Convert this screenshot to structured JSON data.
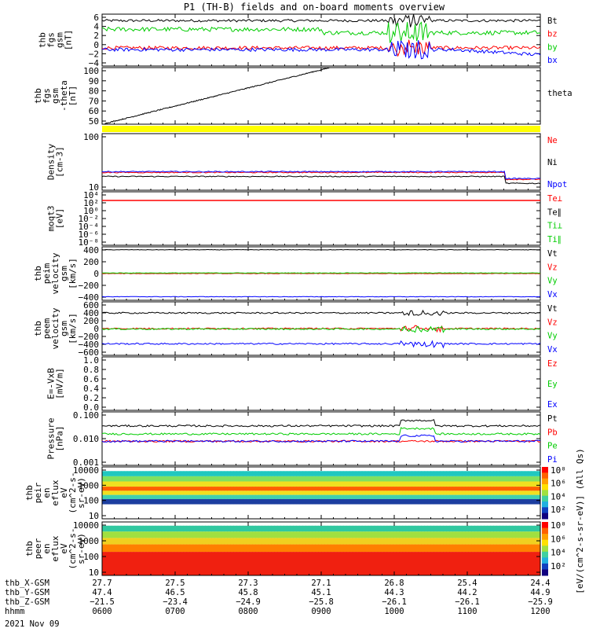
{
  "page": {
    "title": "P1 (TH-B) fields and on-board moments overview",
    "date": "2021 Nov 09"
  },
  "chart_data": [
    {
      "type": "line",
      "panel": "fgs_gsm",
      "ylabel": [
        "thb",
        "fgs",
        "gsm",
        "[nT]"
      ],
      "ylim": [
        -6,
        6
      ],
      "yticks": [
        "6",
        "4",
        "2",
        "0",
        "−2",
        "−4"
      ],
      "series": [
        {
          "name": "Bt",
          "color": "#000000",
          "level": 4.5,
          "noise": 0.3
        },
        {
          "name": "bz",
          "color": "#ff0000",
          "level": -1.8,
          "noise": 0.4
        },
        {
          "name": "by",
          "color": "#00cc00",
          "level": 2.5,
          "noise": 0.5
        },
        {
          "name": "bx",
          "color": "#0000ff",
          "level": -2.2,
          "noise": 0.4
        }
      ]
    },
    {
      "type": "line",
      "panel": "fgs_gsm_theta",
      "ylabel": [
        "thb",
        "fgs",
        "gsm",
        "-theta",
        "[nT]"
      ],
      "ylim": [
        40,
        100
      ],
      "yticks": [
        "100",
        "90",
        "80",
        "70",
        "60",
        "50"
      ],
      "series": [
        {
          "name": "theta",
          "color": "#000000",
          "x": [
            0,
            0.52
          ],
          "y": [
            40,
            100
          ]
        }
      ]
    },
    {
      "type": "bar",
      "panel": "flag",
      "ylabel": [],
      "color": "#ffff00"
    },
    {
      "type": "line",
      "panel": "density",
      "ylabel": [
        "Density",
        "[cm-3]"
      ],
      "scale": "log",
      "ylim": [
        1,
        300
      ],
      "yticks": [
        "100",
        "10"
      ],
      "series": [
        {
          "name": "Ne",
          "color": "#ff0000",
          "level": 6
        },
        {
          "name": "Ni",
          "color": "#000000",
          "level": 4
        },
        {
          "name": "Npot",
          "color": "#0000ff",
          "level": 6.5
        }
      ]
    },
    {
      "type": "line",
      "panel": "moqt3",
      "ylabel": [
        "moqt3",
        "[eV]"
      ],
      "scale": "log",
      "yticks": [
        "10⁴",
        "10²",
        "10⁰",
        "10⁻²",
        "10⁻⁴",
        "10⁻⁶",
        "10⁻⁸"
      ],
      "series": [
        {
          "name": "Te⊥",
          "color": "#ff0000"
        },
        {
          "name": "Te∥",
          "color": "#000000"
        },
        {
          "name": "Ti⊥",
          "color": "#00cc00"
        },
        {
          "name": "Ti∥",
          "color": "#00cc00"
        }
      ]
    },
    {
      "type": "line",
      "panel": "peim_velocity",
      "ylabel": [
        "thb",
        "peim",
        "velocity",
        "gsm",
        "[km/s]"
      ],
      "ylim": [
        -450,
        450
      ],
      "yticks": [
        "400",
        "200",
        "0",
        "−200",
        "−400"
      ],
      "series": [
        {
          "name": "Vt",
          "color": "#000000",
          "level": 400
        },
        {
          "name": "Vz",
          "color": "#ff0000",
          "level": 0
        },
        {
          "name": "Vy",
          "color": "#00cc00",
          "level": 10
        },
        {
          "name": "Vx",
          "color": "#0000ff",
          "level": -390
        }
      ]
    },
    {
      "type": "line",
      "panel": "peem_velocity",
      "ylabel": [
        "thb",
        "peem",
        "velocity",
        "gsm",
        "[km/s]"
      ],
      "ylim": [
        -650,
        650
      ],
      "yticks": [
        "600",
        "400",
        "200",
        "0",
        "−200",
        "−400",
        "−600"
      ],
      "series": [
        {
          "name": "Vt",
          "color": "#000000",
          "level": 380
        },
        {
          "name": "Vz",
          "color": "#ff0000",
          "level": 0
        },
        {
          "name": "Vy",
          "color": "#00cc00",
          "level": -10
        },
        {
          "name": "Vx",
          "color": "#0000ff",
          "level": -370
        }
      ]
    },
    {
      "type": "line",
      "panel": "efield",
      "ylabel": [
        "E=-VxB",
        "[mV/m]"
      ],
      "ylim": [
        0,
        1
      ],
      "yticks": [
        "1.0",
        "0.8",
        "0.6",
        "0.4",
        "0.2",
        "0.0"
      ],
      "series": [
        {
          "name": "Ez",
          "color": "#ff0000"
        },
        {
          "name": "Ey",
          "color": "#00cc00"
        },
        {
          "name": "Ex",
          "color": "#0000ff"
        }
      ]
    },
    {
      "type": "line",
      "panel": "pressure",
      "ylabel": [
        "Pressure",
        "[nPa]"
      ],
      "scale": "log",
      "ylim": [
        0.001,
        0.1
      ],
      "yticks": [
        "0.100",
        "0.010",
        "0.001"
      ],
      "series": [
        {
          "name": "Pt",
          "color": "#000000",
          "level": 0.03
        },
        {
          "name": "Pb",
          "color": "#ff0000",
          "level": 0.008
        },
        {
          "name": "Pe",
          "color": "#00cc00",
          "level": 0.015
        },
        {
          "name": "Pi",
          "color": "#0000ff",
          "level": 0.008
        }
      ]
    },
    {
      "type": "heatmap",
      "panel": "peir_en_eflux",
      "ylabel": [
        "thb",
        "peir",
        "en",
        "eflux",
        "eV",
        "(cm^2-s-",
        "sr-eV)"
      ],
      "yticks": [
        "10000",
        "1000",
        "100",
        "10"
      ]
    },
    {
      "type": "heatmap",
      "panel": "peer_en_eflux",
      "ylabel": [
        "thb",
        "peer",
        "en",
        "eflux",
        "eV",
        "(cm^2-s-",
        "sr-eV)"
      ],
      "yticks": [
        "10000",
        "1000",
        "100",
        "10"
      ]
    }
  ],
  "colorbar": {
    "label": "[eV/(cm^2-s-sr-eV)] (All Qs)",
    "ticks_top": [
      "10⁸",
      "10⁶",
      "10⁴",
      "10²"
    ],
    "ticks_bottom": [
      "10⁸",
      "10⁶",
      "10⁴",
      "10²"
    ]
  },
  "footer": {
    "rows": [
      {
        "label": "thb_X-GSM",
        "values": [
          "27.7",
          "27.5",
          "27.3",
          "27.1",
          "26.8",
          "25.4",
          "24.4"
        ]
      },
      {
        "label": "thb_Y-GSM",
        "values": [
          "47.4",
          "46.5",
          "45.8",
          "45.1",
          "44.3",
          "44.2",
          "44.9"
        ]
      },
      {
        "label": "thb_Z-GSM",
        "values": [
          "−21.5",
          "−23.4",
          "−24.9",
          "−25.8",
          "−26.1",
          "−26.1",
          "−25.9"
        ]
      },
      {
        "label": "hhmm",
        "values": [
          "0600",
          "0700",
          "0800",
          "0900",
          "1000",
          "1100",
          "1200"
        ]
      }
    ]
  }
}
